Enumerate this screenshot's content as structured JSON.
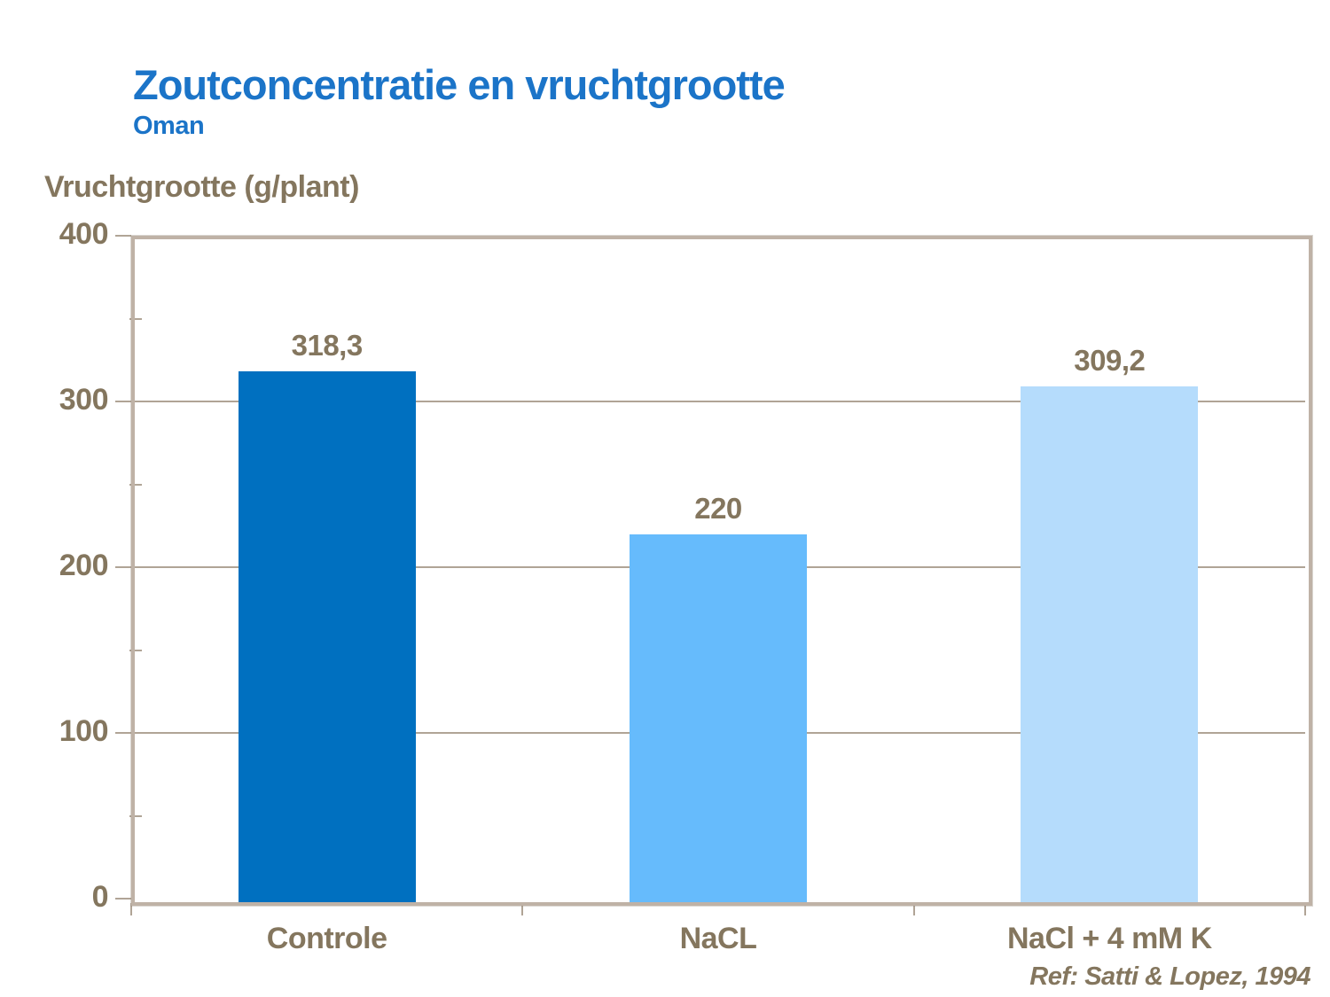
{
  "header": {
    "title": "Zoutconcentratie en vruchtgrootte",
    "subtitle": "Oman"
  },
  "footer": {
    "reference": "Ref: Satti & Lopez, 1994"
  },
  "colors": {
    "title_blue": "#1B74C8",
    "text_brown": "#84765E",
    "frame_tan": "#BFB2A6",
    "gridline_tan": "#B0A496",
    "bar_colors": [
      "#0070C0",
      "#66BBFC",
      "#B5DCFC"
    ]
  },
  "chart_data": {
    "type": "bar",
    "title": "Zoutconcentratie en vruchtgrootte",
    "subtitle": "Oman",
    "ylabel": "Vruchtgrootte (g/plant)",
    "xlabel": "",
    "categories": [
      "Controle",
      "NaCL",
      "NaCl + 4 mM K"
    ],
    "values": [
      318.3,
      220,
      309.2
    ],
    "value_labels": [
      "318,3",
      "220",
      "309,2"
    ],
    "ylim": [
      0,
      400
    ],
    "yticks": [
      0,
      100,
      200,
      300,
      400
    ],
    "minor_yticks": [
      50,
      150,
      250,
      350
    ],
    "grid": "horizontal-major",
    "legend": "none",
    "reference": "Ref: Satti & Lopez, 1994"
  }
}
